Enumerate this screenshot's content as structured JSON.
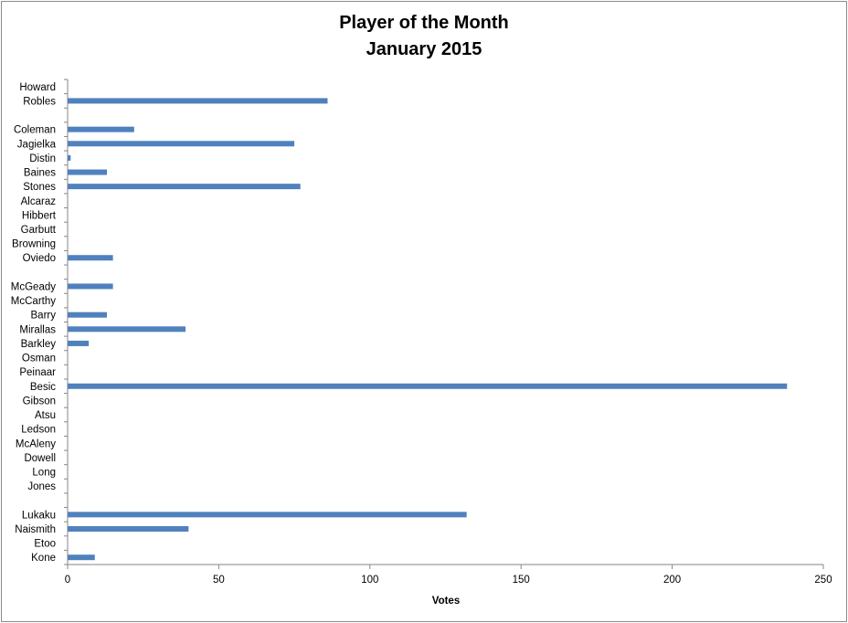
{
  "chart_data": {
    "type": "bar",
    "orientation": "horizontal",
    "title": "Player of the Month",
    "subtitle": "January 2015",
    "xlabel": "Votes",
    "ylabel": "",
    "xlim": [
      0,
      250
    ],
    "xticks": [
      "0",
      "50",
      "100",
      "150",
      "200",
      "250"
    ],
    "bar_color": "#4f81bd",
    "grid": false,
    "categories": [
      "Howard",
      "Robles",
      "",
      "Coleman",
      "Jagielka",
      "Distin",
      "Baines",
      "Stones",
      "Alcaraz",
      "Hibbert",
      "Garbutt",
      "Browning",
      "Oviedo",
      "",
      "McGeady",
      "McCarthy",
      "Barry",
      "Mirallas",
      "Barkley",
      "Osman",
      "Peinaar",
      "Besic",
      "Gibson",
      "Atsu",
      "Ledson",
      "McAleny",
      "Dowell",
      "Long",
      "Jones",
      "",
      "Lukaku",
      "Naismith",
      "Etoo",
      "Kone"
    ],
    "values": [
      0,
      86,
      0,
      22,
      75,
      1,
      13,
      77,
      0,
      0,
      0,
      0,
      15,
      0,
      15,
      0,
      13,
      39,
      7,
      0,
      0,
      238,
      0,
      0,
      0,
      0,
      0,
      0,
      0,
      0,
      132,
      40,
      0,
      9
    ]
  }
}
